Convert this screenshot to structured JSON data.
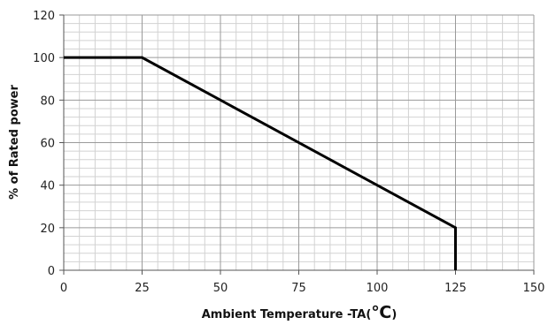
{
  "chart_data": {
    "type": "line",
    "title": "",
    "xlabel": "Ambient Temperature -TA(",
    "xlabel_unit": "℃",
    "xlabel_close": ")",
    "ylabel": "% of Rated power",
    "xlim": [
      0,
      150
    ],
    "ylim": [
      0,
      120
    ],
    "x_major_ticks": [
      0,
      25,
      50,
      75,
      100,
      125,
      150
    ],
    "y_major_ticks": [
      0,
      20,
      40,
      60,
      80,
      100,
      120
    ],
    "x_tick_labels": [
      "0",
      "25",
      "50",
      "75",
      "100",
      "125",
      "150"
    ],
    "y_tick_labels": [
      "0",
      "20",
      "40",
      "60",
      "80",
      "100",
      "120"
    ],
    "x_minor_step": 5,
    "y_minor_step": 4,
    "grid": true,
    "legend": "none",
    "series": [
      {
        "x": [
          0,
          25,
          125,
          125
        ],
        "y": [
          100,
          100,
          20,
          0
        ],
        "color": "#000000"
      }
    ]
  }
}
